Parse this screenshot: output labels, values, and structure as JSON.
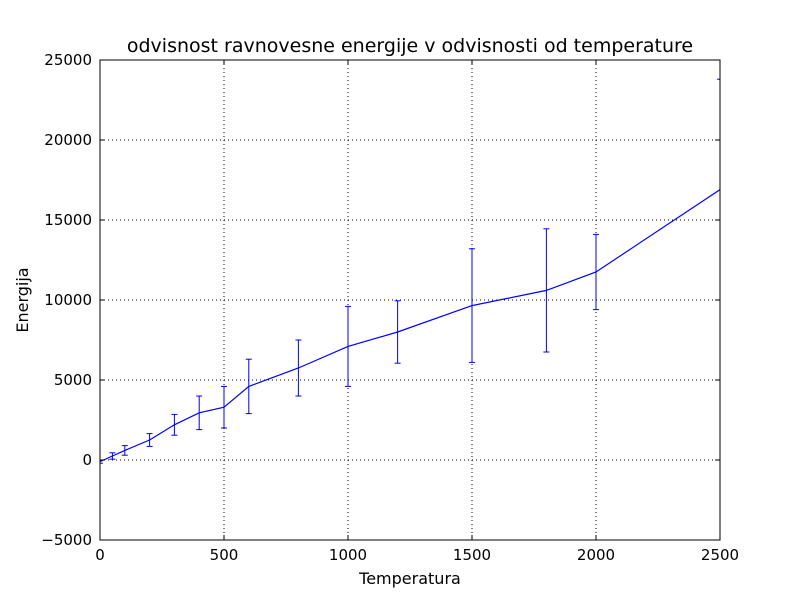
{
  "chart_data": {
    "type": "line",
    "title": "odvisnost ravnovesne energije v odvisnosti od temperature",
    "xlabel": "Temperatura",
    "ylabel": "Energija",
    "xlim": [
      0,
      2500
    ],
    "ylim": [
      -5000,
      25000
    ],
    "xticks": [
      0,
      500,
      1000,
      1500,
      2000,
      2500
    ],
    "yticks": [
      -5000,
      0,
      5000,
      10000,
      15000,
      20000,
      25000
    ],
    "xtick_labels": [
      "0",
      "500",
      "1000",
      "1500",
      "2000",
      "2500"
    ],
    "ytick_labels": [
      "−5000",
      "0",
      "5000",
      "10000",
      "15000",
      "20000",
      "25000"
    ],
    "grid": true,
    "series": [
      {
        "color": "#0000ff",
        "x": [
          0,
          50,
          100,
          200,
          300,
          400,
          500,
          600,
          800,
          1000,
          1200,
          1500,
          1800,
          2000,
          2500
        ],
        "y": [
          -100,
          250,
          600,
          1250,
          2200,
          2950,
          3300,
          4600,
          5750,
          7100,
          8000,
          9650,
          10600,
          11750,
          16900
        ],
        "yerr": [
          100,
          200,
          300,
          400,
          650,
          1050,
          1300,
          1700,
          1750,
          2500,
          1950,
          3550,
          3850,
          2350,
          6900
        ]
      }
    ]
  }
}
